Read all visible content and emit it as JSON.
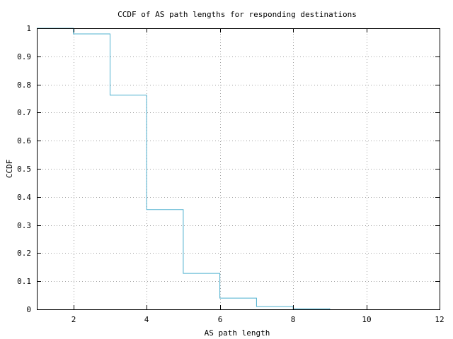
{
  "chart_data": {
    "type": "line",
    "step": true,
    "title": "CCDF of AS path lengths for responding destinations",
    "xlabel": "AS path length",
    "ylabel": "CCDF",
    "xlim": [
      1,
      12
    ],
    "ylim": [
      0,
      1
    ],
    "xticks": [
      2,
      4,
      6,
      8,
      10,
      12
    ],
    "yticks": [
      0,
      0.1,
      0.2,
      0.3,
      0.4,
      0.5,
      0.6,
      0.7,
      0.8,
      0.9,
      1
    ],
    "xtick_labels": [
      "2",
      "4",
      "6",
      "8",
      "10",
      "12"
    ],
    "ytick_labels": [
      "0",
      "0.1",
      "0.2",
      "0.3",
      "0.4",
      "0.5",
      "0.6",
      "0.7",
      "0.8",
      "0.9",
      "1"
    ],
    "grid": true,
    "series": [
      {
        "color": "#4fb0cf",
        "x": [
          1,
          2,
          3,
          4,
          5,
          6,
          7,
          8,
          9
        ],
        "y": [
          1.0,
          0.98,
          0.762,
          0.355,
          0.128,
          0.04,
          0.01,
          0.002,
          0.0
        ]
      }
    ]
  }
}
